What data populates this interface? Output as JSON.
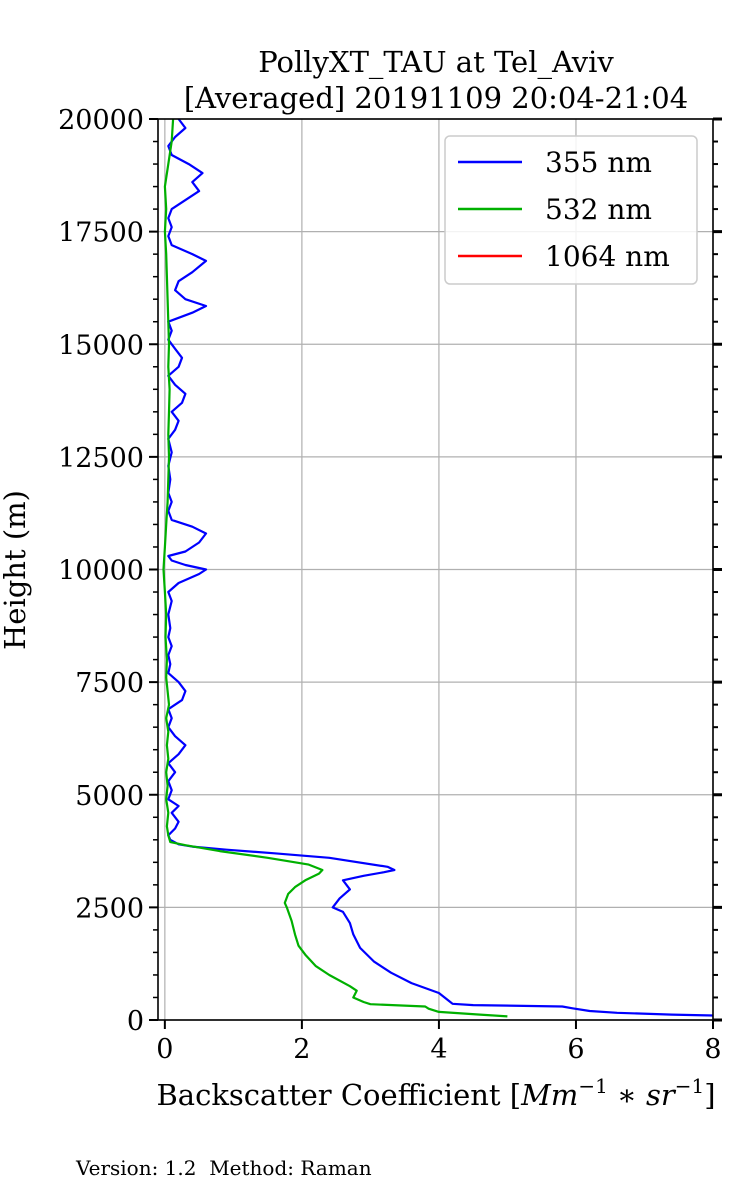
{
  "chart_data": {
    "type": "line",
    "title": "PollyXT_TAU at Tel_Aviv",
    "subtitle": "[Averaged] 20191109 20:04-21:04",
    "xlabel": "Backscatter Coefficient [",
    "xlabel_math": "Mm",
    "xlabel_sup1": "−1",
    "xlabel_mid": " ∗ ",
    "xlabel_math2": "sr",
    "xlabel_sup2": "−1",
    "xlabel_end": "]",
    "ylabel": "Height (m)",
    "xlim": [
      -0.1,
      8
    ],
    "ylim": [
      0,
      20000
    ],
    "xticks": [
      0,
      2,
      4,
      6,
      8
    ],
    "xtick_labels": [
      "0",
      "2",
      "4",
      "6",
      "8"
    ],
    "yticks": [
      0,
      2500,
      5000,
      7500,
      10000,
      12500,
      15000,
      17500,
      20000
    ],
    "ytick_labels": [
      "0",
      "2500",
      "5000",
      "7500",
      "10000",
      "12500",
      "15000",
      "17500",
      "20000"
    ],
    "grid": true,
    "legend_position": "top-right",
    "series": [
      {
        "name": "355 nm",
        "color": "#0000ff",
        "points": [
          [
            8.0,
            100
          ],
          [
            7.4,
            120
          ],
          [
            6.6,
            160
          ],
          [
            6.2,
            200
          ],
          [
            5.95,
            260
          ],
          [
            5.8,
            300
          ],
          [
            4.5,
            330
          ],
          [
            4.2,
            360
          ],
          [
            4.15,
            420
          ],
          [
            4.0,
            600
          ],
          [
            3.6,
            820
          ],
          [
            3.3,
            1050
          ],
          [
            3.05,
            1300
          ],
          [
            2.85,
            1600
          ],
          [
            2.75,
            1900
          ],
          [
            2.7,
            2150
          ],
          [
            2.6,
            2400
          ],
          [
            2.45,
            2500
          ],
          [
            2.55,
            2700
          ],
          [
            2.7,
            2900
          ],
          [
            2.6,
            3100
          ],
          [
            2.9,
            3200
          ],
          [
            3.2,
            3280
          ],
          [
            3.35,
            3330
          ],
          [
            3.25,
            3400
          ],
          [
            2.4,
            3600
          ],
          [
            1.6,
            3700
          ],
          [
            0.9,
            3780
          ],
          [
            0.4,
            3850
          ],
          [
            0.2,
            3900
          ],
          [
            0.08,
            4000
          ],
          [
            0.05,
            4100
          ],
          [
            0.15,
            4250
          ],
          [
            0.2,
            4400
          ],
          [
            0.1,
            4600
          ],
          [
            0.2,
            4750
          ],
          [
            0.05,
            4900
          ],
          [
            0.1,
            5100
          ],
          [
            0.05,
            5300
          ],
          [
            0.15,
            5500
          ],
          [
            0.05,
            5700
          ],
          [
            0.2,
            5900
          ],
          [
            0.3,
            6100
          ],
          [
            0.15,
            6300
          ],
          [
            0.05,
            6500
          ],
          [
            0.1,
            6700
          ],
          [
            0.05,
            6900
          ],
          [
            0.25,
            7100
          ],
          [
            0.3,
            7300
          ],
          [
            0.2,
            7500
          ],
          [
            0.05,
            7700
          ],
          [
            0.08,
            7900
          ],
          [
            0.05,
            8100
          ],
          [
            0.1,
            8300
          ],
          [
            0.05,
            8500
          ],
          [
            0.08,
            8700
          ],
          [
            0.05,
            9000
          ],
          [
            0.1,
            9300
          ],
          [
            0.05,
            9500
          ],
          [
            0.2,
            9700
          ],
          [
            0.5,
            9900
          ],
          [
            0.6,
            10000
          ],
          [
            0.3,
            10100
          ],
          [
            0.1,
            10200
          ],
          [
            0.05,
            10300
          ],
          [
            0.3,
            10400
          ],
          [
            0.5,
            10600
          ],
          [
            0.6,
            10800
          ],
          [
            0.4,
            10950
          ],
          [
            0.1,
            11100
          ],
          [
            0.05,
            11300
          ],
          [
            0.1,
            11500
          ],
          [
            0.05,
            11700
          ],
          [
            0.08,
            12000
          ],
          [
            0.05,
            12300
          ],
          [
            0.1,
            12600
          ],
          [
            0.05,
            12900
          ],
          [
            0.15,
            13100
          ],
          [
            0.2,
            13300
          ],
          [
            0.1,
            13500
          ],
          [
            0.25,
            13700
          ],
          [
            0.3,
            13900
          ],
          [
            0.15,
            14100
          ],
          [
            0.05,
            14300
          ],
          [
            0.2,
            14500
          ],
          [
            0.25,
            14700
          ],
          [
            0.15,
            14900
          ],
          [
            0.05,
            15100
          ],
          [
            0.1,
            15300
          ],
          [
            0.05,
            15500
          ],
          [
            0.4,
            15700
          ],
          [
            0.6,
            15850
          ],
          [
            0.3,
            16000
          ],
          [
            0.15,
            16200
          ],
          [
            0.2,
            16400
          ],
          [
            0.4,
            16600
          ],
          [
            0.6,
            16850
          ],
          [
            0.4,
            17000
          ],
          [
            0.1,
            17200
          ],
          [
            0.05,
            17400
          ],
          [
            0.1,
            17600
          ],
          [
            0.05,
            17800
          ],
          [
            0.1,
            18000
          ],
          [
            0.3,
            18200
          ],
          [
            0.5,
            18400
          ],
          [
            0.4,
            18600
          ],
          [
            0.55,
            18800
          ],
          [
            0.35,
            19000
          ],
          [
            0.1,
            19200
          ],
          [
            0.05,
            19400
          ],
          [
            0.15,
            19600
          ],
          [
            0.3,
            19800
          ],
          [
            0.2,
            20000
          ]
        ]
      },
      {
        "name": "532 nm",
        "color": "#00b000",
        "points": [
          [
            5.0,
            80
          ],
          [
            4.6,
            120
          ],
          [
            4.0,
            180
          ],
          [
            3.85,
            250
          ],
          [
            3.8,
            300
          ],
          [
            3.0,
            350
          ],
          [
            2.9,
            400
          ],
          [
            2.75,
            500
          ],
          [
            2.8,
            650
          ],
          [
            2.7,
            750
          ],
          [
            2.4,
            1000
          ],
          [
            2.2,
            1200
          ],
          [
            2.05,
            1450
          ],
          [
            1.95,
            1650
          ],
          [
            1.9,
            1900
          ],
          [
            1.85,
            2200
          ],
          [
            1.78,
            2500
          ],
          [
            1.75,
            2600
          ],
          [
            1.8,
            2800
          ],
          [
            1.9,
            2950
          ],
          [
            2.05,
            3100
          ],
          [
            2.25,
            3250
          ],
          [
            2.3,
            3330
          ],
          [
            2.1,
            3450
          ],
          [
            1.5,
            3600
          ],
          [
            0.8,
            3750
          ],
          [
            0.3,
            3880
          ],
          [
            0.08,
            3950
          ],
          [
            0.05,
            4100
          ],
          [
            0.03,
            4300
          ],
          [
            0.05,
            4600
          ],
          [
            0.02,
            4900
          ],
          [
            0.04,
            5200
          ],
          [
            0.02,
            5500
          ],
          [
            0.05,
            5800
          ],
          [
            0.03,
            6100
          ],
          [
            0.05,
            6400
          ],
          [
            0.02,
            6700
          ],
          [
            0.06,
            7000
          ],
          [
            0.04,
            7300
          ],
          [
            0.02,
            7600
          ],
          [
            0.03,
            8000
          ],
          [
            0.01,
            8500
          ],
          [
            0.02,
            9000
          ],
          [
            0.0,
            9500
          ],
          [
            -0.02,
            10000
          ],
          [
            0.0,
            10500
          ],
          [
            0.02,
            11000
          ],
          [
            0.04,
            11500
          ],
          [
            0.05,
            12000
          ],
          [
            0.06,
            12500
          ],
          [
            0.05,
            13000
          ],
          [
            0.06,
            13500
          ],
          [
            0.07,
            14000
          ],
          [
            0.05,
            14500
          ],
          [
            0.06,
            15000
          ],
          [
            0.05,
            15500
          ],
          [
            0.04,
            16000
          ],
          [
            0.03,
            16500
          ],
          [
            0.02,
            17000
          ],
          [
            0.0,
            17500
          ],
          [
            0.02,
            18000
          ],
          [
            0.0,
            18500
          ],
          [
            0.05,
            19000
          ],
          [
            0.1,
            19500
          ],
          [
            0.12,
            20000
          ]
        ]
      },
      {
        "name": "1064 nm",
        "color": "#ff0000",
        "points": []
      }
    ]
  },
  "footer": {
    "text": "Version: 1.2  Method: Raman"
  }
}
